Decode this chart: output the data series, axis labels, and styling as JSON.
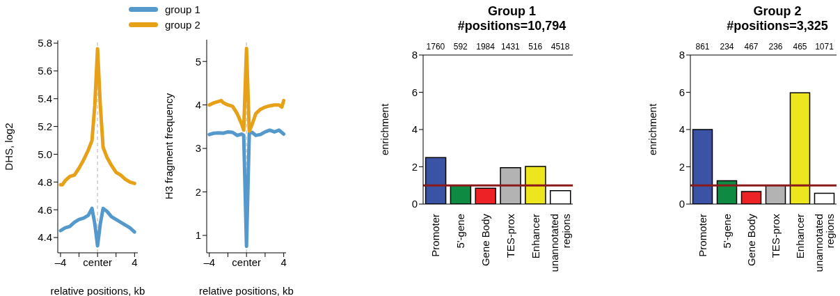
{
  "chart_data": [
    {
      "type": "line",
      "ylabel": "DHS, log2",
      "xlabel": "relative positions, kb",
      "legend": "top right",
      "line_style": "solid",
      "xlim": [
        -4.3,
        4.35
      ],
      "xticks": [
        {
          "value": -4,
          "label": "–4"
        },
        {
          "value": -2,
          "label": null
        },
        {
          "value": 0,
          "label": "center"
        },
        {
          "value": 2,
          "label": null
        },
        {
          "value": 4,
          "label": "4"
        }
      ],
      "ylim": [
        4.29,
        5.82
      ],
      "yticks": [
        4.4,
        4.6,
        4.8,
        {
          "value": 5,
          "label": "5.0"
        },
        5.2,
        5.4,
        5.6,
        5.8
      ],
      "ref_lines": [
        {
          "axis": "x",
          "value": 0,
          "label": null,
          "color": "#cccccc",
          "line_style": "dashed"
        }
      ],
      "series": [
        {
          "name": "group 1",
          "color": "#5599cc",
          "x": [
            -4,
            -3.5,
            -3,
            -2.5,
            -2,
            -1.5,
            -1,
            -0.6,
            -0.3,
            0,
            0.3,
            0.6,
            1,
            1.5,
            2,
            2.5,
            3,
            3.5,
            4
          ],
          "values": [
            4.45,
            4.47,
            4.48,
            4.51,
            4.53,
            4.54,
            4.56,
            4.61,
            4.5,
            4.34,
            4.5,
            4.61,
            4.59,
            4.55,
            4.53,
            4.51,
            4.49,
            4.47,
            4.44
          ]
        },
        {
          "name": "group 2",
          "color": "#e6a118",
          "x": [
            -4,
            -3.8,
            -3.5,
            -3,
            -2.5,
            -2,
            -1.5,
            -1,
            -0.6,
            -0.3,
            0,
            0.3,
            0.6,
            1,
            1.5,
            2,
            2.5,
            3,
            3.5,
            4
          ],
          "values": [
            4.78,
            4.78,
            4.81,
            4.84,
            4.85,
            4.9,
            4.96,
            5.03,
            5.1,
            5.35,
            5.76,
            5.35,
            5.05,
            4.98,
            4.92,
            4.87,
            4.85,
            4.82,
            4.8,
            4.79
          ]
        }
      ]
    },
    {
      "type": "line",
      "ylabel": "H3 fragment frequency",
      "xlabel": "relative positions, kb",
      "line_style": "solid",
      "xlim": [
        -4.28,
        4.25
      ],
      "xticks": [
        {
          "value": -4,
          "label": "–4"
        },
        {
          "value": -2,
          "label": null
        },
        {
          "value": 0,
          "label": "center"
        },
        {
          "value": 2,
          "label": null
        },
        {
          "value": 4,
          "label": "4"
        }
      ],
      "ylim": [
        0.6,
        5.5
      ],
      "yticks": [
        1,
        2,
        3,
        4,
        5
      ],
      "ref_lines": [
        {
          "axis": "x",
          "value": 0,
          "label": null,
          "color": "#cccccc",
          "line_style": "dashed"
        }
      ],
      "series": [
        {
          "color": "#5599cc",
          "x": [
            -4,
            -3.5,
            -3,
            -2.5,
            -2,
            -1.5,
            -1,
            -0.5,
            -0.3,
            0,
            0.3,
            0.6,
            1,
            1.5,
            2,
            2.5,
            3,
            3.5,
            4
          ],
          "values": [
            3.32,
            3.35,
            3.36,
            3.35,
            3.38,
            3.37,
            3.3,
            3.33,
            3.3,
            0.75,
            3.35,
            3.37,
            3.3,
            3.32,
            3.38,
            3.42,
            3.38,
            3.42,
            3.33
          ]
        },
        {
          "color": "#e6a118",
          "x": [
            -4,
            -3.5,
            -3,
            -2.7,
            -2.5,
            -2,
            -1.5,
            -1,
            -0.5,
            -0.3,
            0,
            0.3,
            0.6,
            1,
            1.5,
            2,
            2.5,
            3,
            3.5,
            3.8,
            4
          ],
          "values": [
            4.0,
            4.05,
            4.08,
            4.1,
            4.05,
            4.0,
            3.97,
            3.8,
            3.55,
            3.42,
            5.3,
            3.4,
            3.55,
            3.8,
            3.9,
            3.95,
            3.98,
            4.0,
            4.0,
            3.95,
            4.1
          ]
        }
      ]
    },
    {
      "type": "bar",
      "title": "Group 1",
      "subtitle": "#positions=10,794",
      "ylabel": "enrichment",
      "categories": [
        "Promoter",
        "5'-gene",
        "Gene Body",
        "TES-prox",
        "Enhancer",
        "unannotated regions"
      ],
      "values": [
        2.5,
        1.0,
        0.85,
        1.95,
        2.02,
        0.72
      ],
      "colors": [
        "#3a53a4",
        "#0e8a43",
        "#ec2227",
        "#b3b3b3",
        "#ede51d",
        "#ffffff"
      ],
      "ylim": [
        0,
        8
      ],
      "yticks": [
        0,
        2,
        4,
        6,
        8
      ],
      "ref_lines": [
        {
          "axis": "y",
          "value": 1,
          "label": null,
          "color": "#8b1a1a"
        }
      ],
      "annotations": [
        "1760",
        "592",
        "1984",
        "1431",
        "516",
        "4518"
      ]
    },
    {
      "type": "bar",
      "title": "Group 2",
      "subtitle": "#positions=3,325",
      "ylabel": "enrichment",
      "categories": [
        "Promoter",
        "5'-gene",
        "Gene Body",
        "TES-prox",
        "Enhancer",
        "unannotated regions"
      ],
      "values": [
        4.0,
        1.25,
        0.67,
        1.0,
        5.97,
        0.58
      ],
      "colors": [
        "#3a53a4",
        "#0e8a43",
        "#ec2227",
        "#b3b3b3",
        "#ede51d",
        "#ffffff"
      ],
      "ylim": [
        0,
        8
      ],
      "yticks": [
        0,
        2,
        4,
        6,
        8
      ],
      "ref_lines": [
        {
          "axis": "y",
          "value": 1,
          "label": null,
          "color": "#8b1a1a"
        }
      ],
      "annotations": [
        "861",
        "234",
        "467",
        "236",
        "465",
        "1071"
      ]
    }
  ]
}
